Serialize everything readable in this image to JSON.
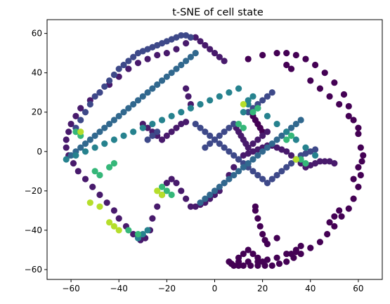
{
  "chart_data": {
    "type": "scatter",
    "title": "t-SNE of cell state",
    "xlabel": "",
    "ylabel": "",
    "xlim": [
      -70,
      70
    ],
    "ylim": [
      -65,
      67
    ],
    "xticks": [
      -60,
      -40,
      -20,
      0,
      20,
      40,
      60
    ],
    "yticks": [
      -60,
      -40,
      -20,
      0,
      20,
      40,
      60
    ],
    "grid": false,
    "legend": "none",
    "colormap": "viridis",
    "colors": {
      "dark": "#440154",
      "deep_purple": "#481a6c",
      "indigo": "#3e4989",
      "blue": "#31688e",
      "teal": "#26828e",
      "green": "#35b779",
      "yellow_green": "#b5de2b"
    },
    "series": [
      {
        "color_value": 0.02,
        "color_key": "dark",
        "x": [
          14,
          20,
          26,
          30,
          34,
          38,
          42,
          46,
          50,
          54,
          56,
          58,
          60,
          61,
          61.5,
          61,
          60,
          58,
          56,
          53,
          50,
          47,
          44,
          40,
          36,
          33,
          30,
          27,
          24,
          21,
          18,
          15,
          12,
          10,
          8,
          7,
          6,
          10,
          14,
          18,
          22,
          26,
          30,
          34,
          21,
          20,
          19,
          18,
          17,
          17,
          22,
          26,
          40,
          44,
          48,
          52,
          56,
          60,
          62,
          60,
          58,
          10,
          12,
          14,
          16,
          18,
          20,
          48,
          50,
          52,
          30,
          32,
          16,
          17,
          18,
          19,
          20,
          32,
          34,
          36
        ],
        "y": [
          47,
          49,
          50,
          50,
          49,
          47,
          44,
          40,
          35,
          29,
          23,
          16,
          9,
          2,
          -5,
          -12,
          -18,
          -24,
          -29,
          -33,
          -38,
          -42,
          -46,
          -49,
          -52,
          -54,
          -56,
          -57,
          -58,
          -58,
          -58,
          -58,
          -58,
          -58,
          -58,
          -57,
          -56,
          -56,
          -56,
          -56,
          -55,
          -54,
          -52,
          -50,
          -45,
          -42,
          -38,
          -34,
          -30,
          -28,
          -47,
          -44,
          36,
          32,
          28,
          24,
          18,
          12,
          -2,
          -8,
          -14,
          -54,
          -52,
          -50,
          -52,
          -54,
          -56,
          -36,
          -33,
          -30,
          44,
          42,
          18,
          16,
          14,
          12,
          10,
          -52,
          -51,
          -48
        ]
      },
      {
        "color_value": 0.12,
        "color_key": "deep_purple",
        "x": [
          -10,
          -12,
          -16,
          -20,
          -24,
          -28,
          -32,
          -36,
          -40,
          -44,
          -48,
          -52,
          -56,
          -58,
          -60,
          -61,
          -62,
          -62,
          -61,
          -59,
          -57,
          -54,
          -51,
          -48,
          -45,
          -42,
          -40,
          -37,
          -34,
          -31,
          -29,
          -27,
          -26,
          -24,
          -22,
          -20,
          -18,
          -16,
          -14,
          -12,
          -10,
          -8,
          -6,
          -4,
          -2,
          0,
          2,
          4,
          6,
          8,
          10,
          12,
          14,
          16,
          18,
          20,
          22,
          24,
          26,
          28,
          30,
          32,
          34,
          36,
          38,
          40,
          42,
          44,
          46,
          48,
          50,
          -8,
          -6,
          -4,
          -2,
          0,
          2,
          4,
          -12,
          -11,
          -10,
          8,
          9,
          10,
          11,
          12,
          13,
          -30,
          -28,
          -26,
          -24,
          -22,
          -20,
          -18,
          -16,
          -14,
          -12,
          14,
          16,
          18,
          20,
          22
        ],
        "y": [
          58,
          55,
          52,
          50,
          49,
          47,
          45,
          42,
          38,
          34,
          30,
          26,
          22,
          18,
          14,
          10,
          6,
          2,
          -2,
          -6,
          -10,
          -14,
          -18,
          -22,
          -26,
          -30,
          -34,
          -38,
          -42,
          -45,
          -44,
          -40,
          -34,
          -28,
          -22,
          -16,
          -14,
          -16,
          -20,
          -24,
          -28,
          -28,
          -27,
          -26,
          -24,
          -22,
          -20,
          -16,
          -12,
          -8,
          -4,
          -2,
          -1,
          0,
          1,
          2,
          3,
          3,
          2,
          1,
          0,
          -2,
          -4,
          -6,
          -8,
          -7,
          -6,
          -5,
          -5,
          -5,
          -6,
          58,
          56,
          54,
          52,
          50,
          48,
          46,
          32,
          28,
          24,
          14,
          12,
          10,
          8,
          6,
          4,
          14,
          12,
          10,
          8,
          6,
          8,
          10,
          12,
          14,
          15,
          2,
          4,
          6,
          8,
          10
        ]
      },
      {
        "color_value": 0.28,
        "color_key": "indigo",
        "x": [
          -58,
          -56,
          -54,
          -52,
          -50,
          -48,
          -46,
          -44,
          -42,
          -40,
          -38,
          -36,
          -34,
          -32,
          -30,
          -28,
          -26,
          -24,
          -22,
          -20,
          -18,
          -16,
          -14,
          -12,
          -10,
          -8,
          -6,
          -4,
          -2,
          0,
          2,
          4,
          6,
          8,
          10,
          12,
          14,
          16,
          18,
          20,
          22,
          24,
          26,
          28,
          30,
          32,
          34,
          36,
          38,
          40,
          42,
          -4,
          -2,
          0,
          2,
          4,
          6,
          8,
          -28,
          -26,
          -24,
          14,
          16,
          18,
          20,
          22,
          24
        ],
        "y": [
          12,
          16,
          20,
          24,
          28,
          30,
          33,
          36,
          39,
          42,
          44,
          46,
          48,
          50,
          51,
          52,
          53,
          54,
          55,
          56,
          57,
          58,
          59,
          59,
          58,
          14,
          12,
          10,
          8,
          6,
          4,
          2,
          0,
          -2,
          -4,
          -6,
          -8,
          -10,
          -12,
          -14,
          -16,
          -14,
          -12,
          -10,
          -8,
          -6,
          -4,
          -2,
          -1,
          0,
          1,
          2,
          4,
          6,
          8,
          10,
          12,
          14,
          6,
          8,
          10,
          20,
          22,
          24,
          26,
          28,
          30
        ]
      },
      {
        "color_value": 0.42,
        "color_key": "blue",
        "x": [
          -60,
          -58,
          -56,
          -54,
          -52,
          -50,
          -48,
          -46,
          -44,
          -42,
          -40,
          -38,
          -36,
          -34,
          -32,
          -30,
          -28,
          -26,
          -24,
          -22,
          -20,
          -18,
          -16,
          -14,
          -12,
          -10,
          -8,
          -6,
          -4,
          -2,
          0,
          2,
          4,
          6,
          8,
          10,
          12,
          14,
          16,
          18,
          20,
          22,
          24,
          26,
          28,
          30,
          32,
          34,
          36
        ],
        "y": [
          -2,
          0,
          2,
          4,
          6,
          8,
          10,
          12,
          14,
          16,
          18,
          20,
          22,
          24,
          26,
          28,
          30,
          32,
          34,
          36,
          38,
          40,
          42,
          44,
          46,
          48,
          50,
          -26,
          -24,
          -22,
          -20,
          -18,
          -16,
          -14,
          -12,
          -10,
          -8,
          -6,
          -4,
          -2,
          0,
          2,
          4,
          6,
          8,
          10,
          12,
          14,
          16
        ]
      },
      {
        "color_value": 0.55,
        "color_key": "teal",
        "x": [
          -62,
          -58,
          -54,
          -50,
          -46,
          -42,
          -38,
          -34,
          -30,
          -26,
          -22,
          -18,
          -14,
          -10,
          -6,
          -2,
          2,
          6,
          10,
          14,
          18,
          22,
          26,
          30,
          34,
          38,
          42,
          -32,
          -30,
          -28,
          12,
          14,
          16
        ],
        "y": [
          -4,
          -2,
          0,
          2,
          4,
          6,
          8,
          10,
          12,
          14,
          16,
          18,
          20,
          22,
          24,
          26,
          28,
          30,
          32,
          26,
          22,
          18,
          14,
          10,
          6,
          2,
          -2,
          -44,
          -42,
          -40,
          20,
          24,
          28
        ]
      },
      {
        "color_value": 0.75,
        "color_key": "green",
        "x": [
          -58,
          -56,
          -50,
          -48,
          -44,
          -42,
          -36,
          -32,
          -22,
          -20,
          -18,
          10,
          12,
          16,
          18,
          30,
          32,
          36,
          38
        ],
        "y": [
          10,
          8,
          -10,
          -12,
          -8,
          -6,
          -40,
          -42,
          -18,
          -20,
          -22,
          14,
          12,
          20,
          22,
          6,
          8,
          -4,
          -6
        ]
      },
      {
        "color_value": 0.9,
        "color_key": "yellow_green",
        "x": [
          -56,
          -52,
          -48,
          -44,
          -42,
          -40,
          -24,
          -22,
          12,
          34
        ],
        "y": [
          10,
          -26,
          -28,
          -36,
          -38,
          -40,
          -20,
          -22,
          24,
          -4
        ]
      }
    ]
  }
}
